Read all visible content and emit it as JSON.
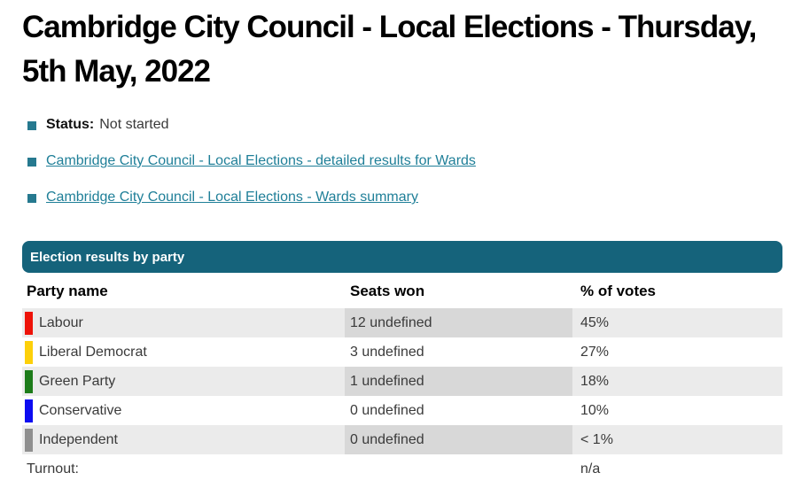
{
  "page": {
    "title": "Cambridge City Council - Local Elections - Thursday, 5th May, 2022"
  },
  "info_list": {
    "status": {
      "label": "Status:",
      "value": "Not started"
    },
    "links": [
      {
        "label": "Cambridge City Council - Local Elections - detailed results for Wards"
      },
      {
        "label": "Cambridge City Council - Local Elections - Wards summary"
      }
    ]
  },
  "results_table": {
    "caption": "Election results by party",
    "columns": {
      "party": "Party name",
      "seats": "Seats won",
      "votes": "% of votes"
    },
    "rows": [
      {
        "party": "Labour",
        "color": "#ee1309",
        "seats": "12 undefined",
        "votes": "45%"
      },
      {
        "party": "Liberal Democrat",
        "color": "#fdd00a",
        "seats": "3 undefined",
        "votes": "27%"
      },
      {
        "party": "Green Party",
        "color": "#1d7c1a",
        "seats": "1 undefined",
        "votes": "18%"
      },
      {
        "party": "Conservative",
        "color": "#0d0cf1",
        "seats": "0 undefined",
        "votes": "10%"
      },
      {
        "party": "Independent",
        "color": "#8f8f8f",
        "seats": "0 undefined",
        "votes": "< 1%"
      }
    ],
    "turnout": {
      "label": "Turnout:",
      "seats": "",
      "value": "n/a"
    }
  },
  "theme": {
    "accent": "#15637b",
    "link": "#1f7f98",
    "bullet": "#26798f",
    "stripe": "#ebebeb",
    "stripe_dark": "#d8d8d8",
    "heading_text": "#000000",
    "body_text": "#3a3a3a",
    "caption_text": "#ffffff"
  }
}
